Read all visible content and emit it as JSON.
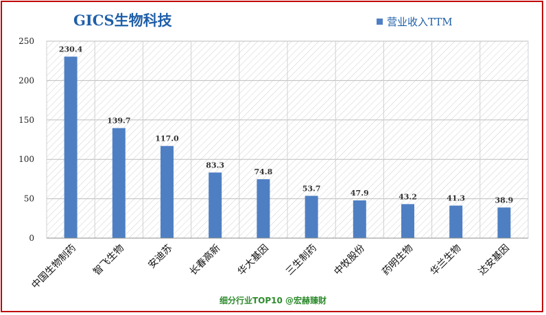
{
  "title": "GICS生物科技",
  "legend": {
    "label": "营业收入TTM",
    "color": "#4f7fc3"
  },
  "footer": "细分行业TOP10 @宏赫臻财",
  "colors": {
    "bar": "#4f7fc3",
    "frame": "#c00000",
    "title": "#1f5fa8",
    "footer": "#2e8b2e"
  },
  "chart_data": {
    "type": "bar",
    "title": "GICS生物科技",
    "xlabel": "",
    "ylabel": "",
    "categories": [
      "中国生物制药",
      "智飞生物",
      "安迪苏",
      "长春高新",
      "华大基因",
      "三生制药",
      "中牧股份",
      "药明生物",
      "华兰生物",
      "达安基因"
    ],
    "series": [
      {
        "name": "营业收入TTM",
        "values": [
          230.4,
          139.7,
          117.0,
          83.3,
          74.8,
          53.7,
          47.9,
          43.2,
          41.3,
          38.9
        ]
      }
    ],
    "value_labels": [
      "230.4",
      "139.7",
      "117.0",
      "83.3",
      "74.8",
      "53.7",
      "47.9",
      "43.2",
      "41.3",
      "38.9"
    ],
    "ylim": [
      0,
      250
    ],
    "yticks": [
      0,
      50,
      100,
      150,
      200,
      250
    ],
    "grid": true,
    "legend_position": "top-right"
  }
}
